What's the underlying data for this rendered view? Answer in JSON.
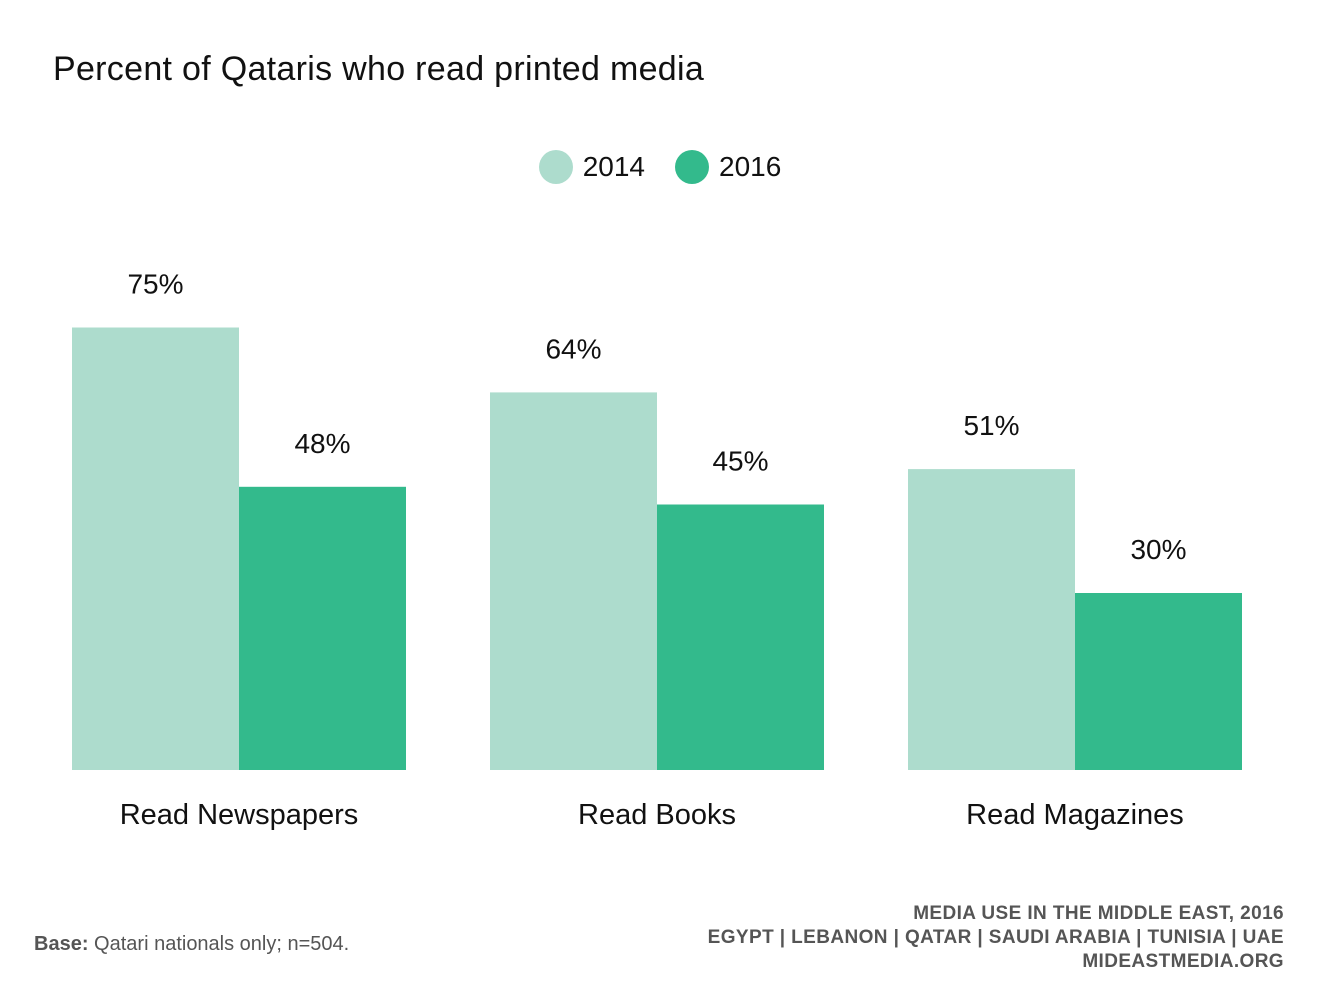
{
  "chart_data": {
    "type": "bar",
    "title": "Percent of Qataris who read printed media",
    "categories": [
      "Read Newspapers",
      "Read Books",
      "Read Magazines"
    ],
    "series": [
      {
        "name": "2014",
        "color": "#addccd",
        "values": [
          75,
          64,
          51
        ],
        "labels": [
          "75%",
          "64%",
          "51%"
        ]
      },
      {
        "name": "2016",
        "color": "#33ba8c",
        "values": [
          48,
          45,
          30
        ],
        "labels": [
          "48%",
          "45%",
          "30%"
        ]
      }
    ],
    "ylim": [
      0,
      100
    ],
    "grid": false,
    "legend_position": "top-center"
  },
  "footnote": {
    "label": "Base:",
    "text": "Qatari nationals only; n=504."
  },
  "footer": {
    "line1": "MEDIA USE IN THE MIDDLE EAST, 2016",
    "line2": "EGYPT | LEBANON | QATAR | SAUDI ARABIA | TUNISIA | UAE",
    "line3": "MIDEASTMEDIA.ORG"
  }
}
